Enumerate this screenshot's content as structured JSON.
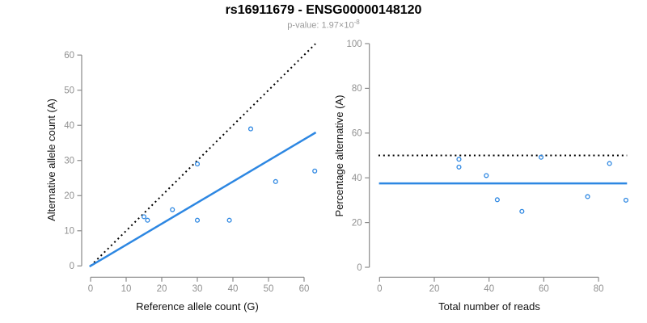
{
  "header": {
    "title": "rs16911679 - ENSG00000148120",
    "pvalue_text": "p-value: 1.97×10",
    "pvalue_exponent": "-8"
  },
  "colors": {
    "accent_blue": "#2D87E2",
    "dotted_line": "#000000",
    "axis": "#8a8a8a",
    "tick_label": "#909090",
    "axis_title": "#111111",
    "subtitle": "#9a9a9a",
    "background": "#ffffff"
  },
  "chart_data": [
    {
      "type": "scatter",
      "name": "allele-counts",
      "xlabel": "Reference allele count (G)",
      "ylabel": "Alternative allele count (A)",
      "xticks": [
        0,
        10,
        20,
        30,
        40,
        50,
        60
      ],
      "yticks": [
        0,
        10,
        20,
        30,
        40,
        50,
        60
      ],
      "xlim": [
        -2.5,
        64.5
      ],
      "ylim": [
        -3,
        63
      ],
      "grid": false,
      "legend": "none",
      "points": [
        [
          15,
          14
        ],
        [
          16,
          13
        ],
        [
          23,
          16
        ],
        [
          30,
          13
        ],
        [
          30,
          29
        ],
        [
          39,
          13
        ],
        [
          45,
          39
        ],
        [
          52,
          24
        ],
        [
          63,
          27
        ]
      ],
      "lines": [
        {
          "kind": "identity-line",
          "slope": 1,
          "intercept": 0,
          "style": "dotted",
          "color": "#000000",
          "x_range": [
            0,
            63.2
          ]
        },
        {
          "kind": "fit-line",
          "slope": 0.6,
          "intercept": 0,
          "style": "solid",
          "color": "#2D87E2",
          "x_range": [
            -0.3,
            63.3
          ]
        }
      ]
    },
    {
      "type": "scatter",
      "name": "percentage-alternative",
      "xlabel": "Total number of reads",
      "ylabel": "Percentage alternative (A)",
      "xticks": [
        0,
        20,
        40,
        60,
        80
      ],
      "yticks": [
        0,
        20,
        40,
        60,
        80,
        100
      ],
      "xlim": [
        -3.7,
        93.7
      ],
      "ylim": [
        -4,
        104
      ],
      "grid": false,
      "legend": "none",
      "points": [
        [
          29,
          48.3
        ],
        [
          29,
          44.8
        ],
        [
          39,
          41.0
        ],
        [
          43,
          30.2
        ],
        [
          52,
          25.0
        ],
        [
          59,
          49.2
        ],
        [
          76,
          31.6
        ],
        [
          84,
          46.4
        ],
        [
          90,
          30.0
        ]
      ],
      "lines": [
        {
          "kind": "expected-line",
          "slope": 0,
          "intercept": 50,
          "style": "dotted",
          "color": "#000000",
          "x_range": [
            -0.4,
            90.4
          ]
        },
        {
          "kind": "fit-line",
          "slope": 0,
          "intercept": 37.5,
          "style": "solid",
          "color": "#2D87E2",
          "x_range": [
            -0.2,
            90.4
          ]
        }
      ]
    }
  ]
}
